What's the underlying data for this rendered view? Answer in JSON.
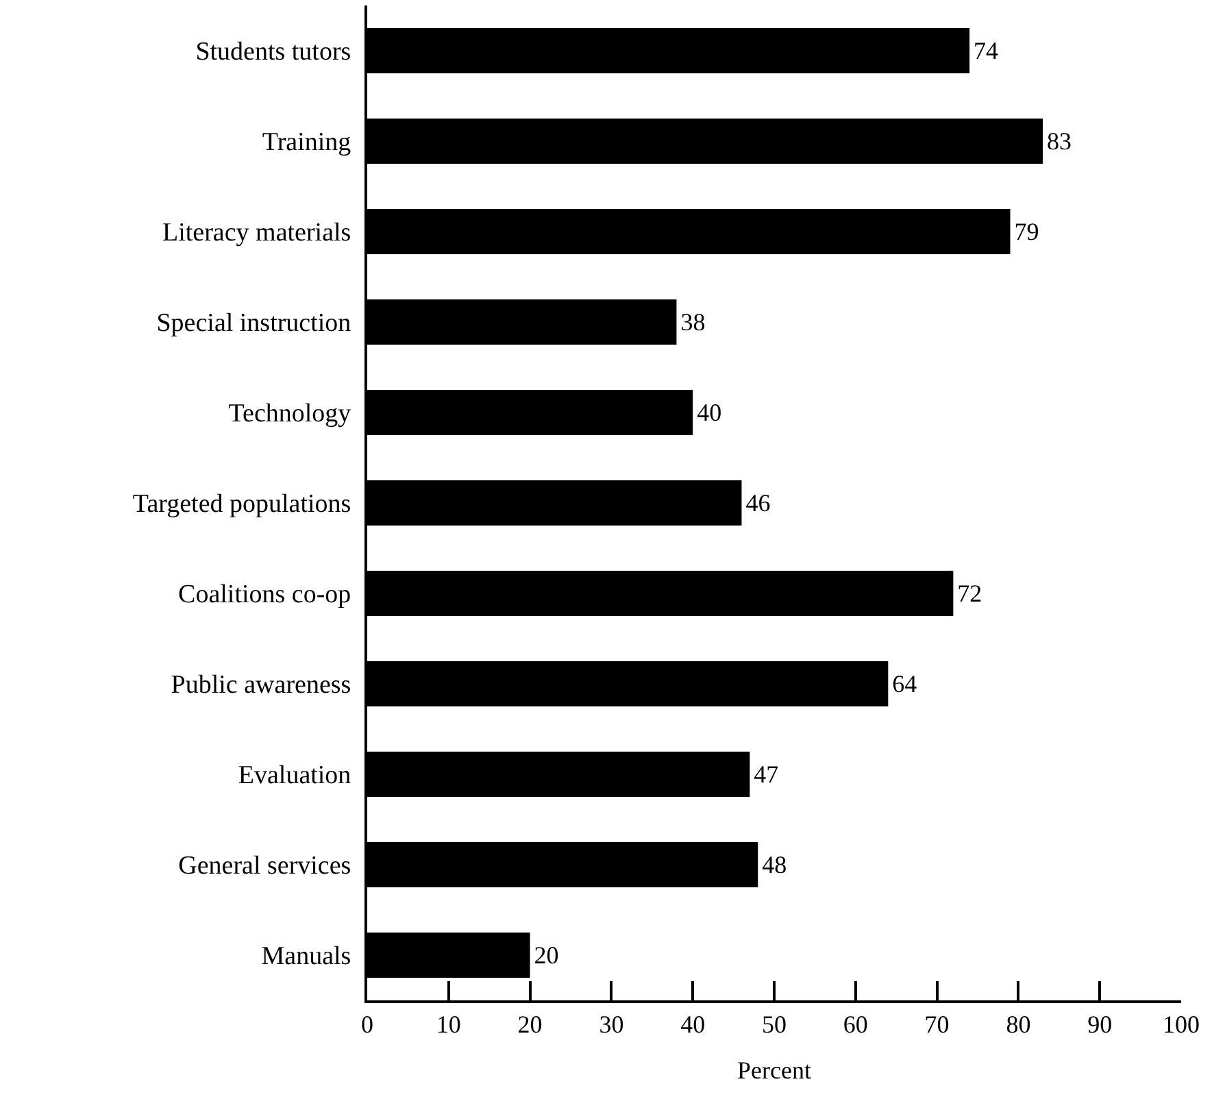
{
  "chart_data": {
    "type": "bar",
    "orientation": "horizontal",
    "xlabel": "Percent",
    "categories": [
      "Students tutors",
      "Training",
      "Literacy materials",
      "Special instruction",
      "Technology",
      "Targeted populations",
      "Coalitions co-op",
      "Public awareness",
      "Evaluation",
      "General services",
      "Manuals"
    ],
    "values": [
      74,
      83,
      79,
      38,
      40,
      46,
      72,
      64,
      47,
      48,
      20
    ],
    "color": "#000000",
    "data_labels": true,
    "xlim": [
      0,
      100
    ],
    "xticks": [
      0,
      10,
      20,
      30,
      40,
      50,
      60,
      70,
      80,
      90,
      100
    ]
  }
}
